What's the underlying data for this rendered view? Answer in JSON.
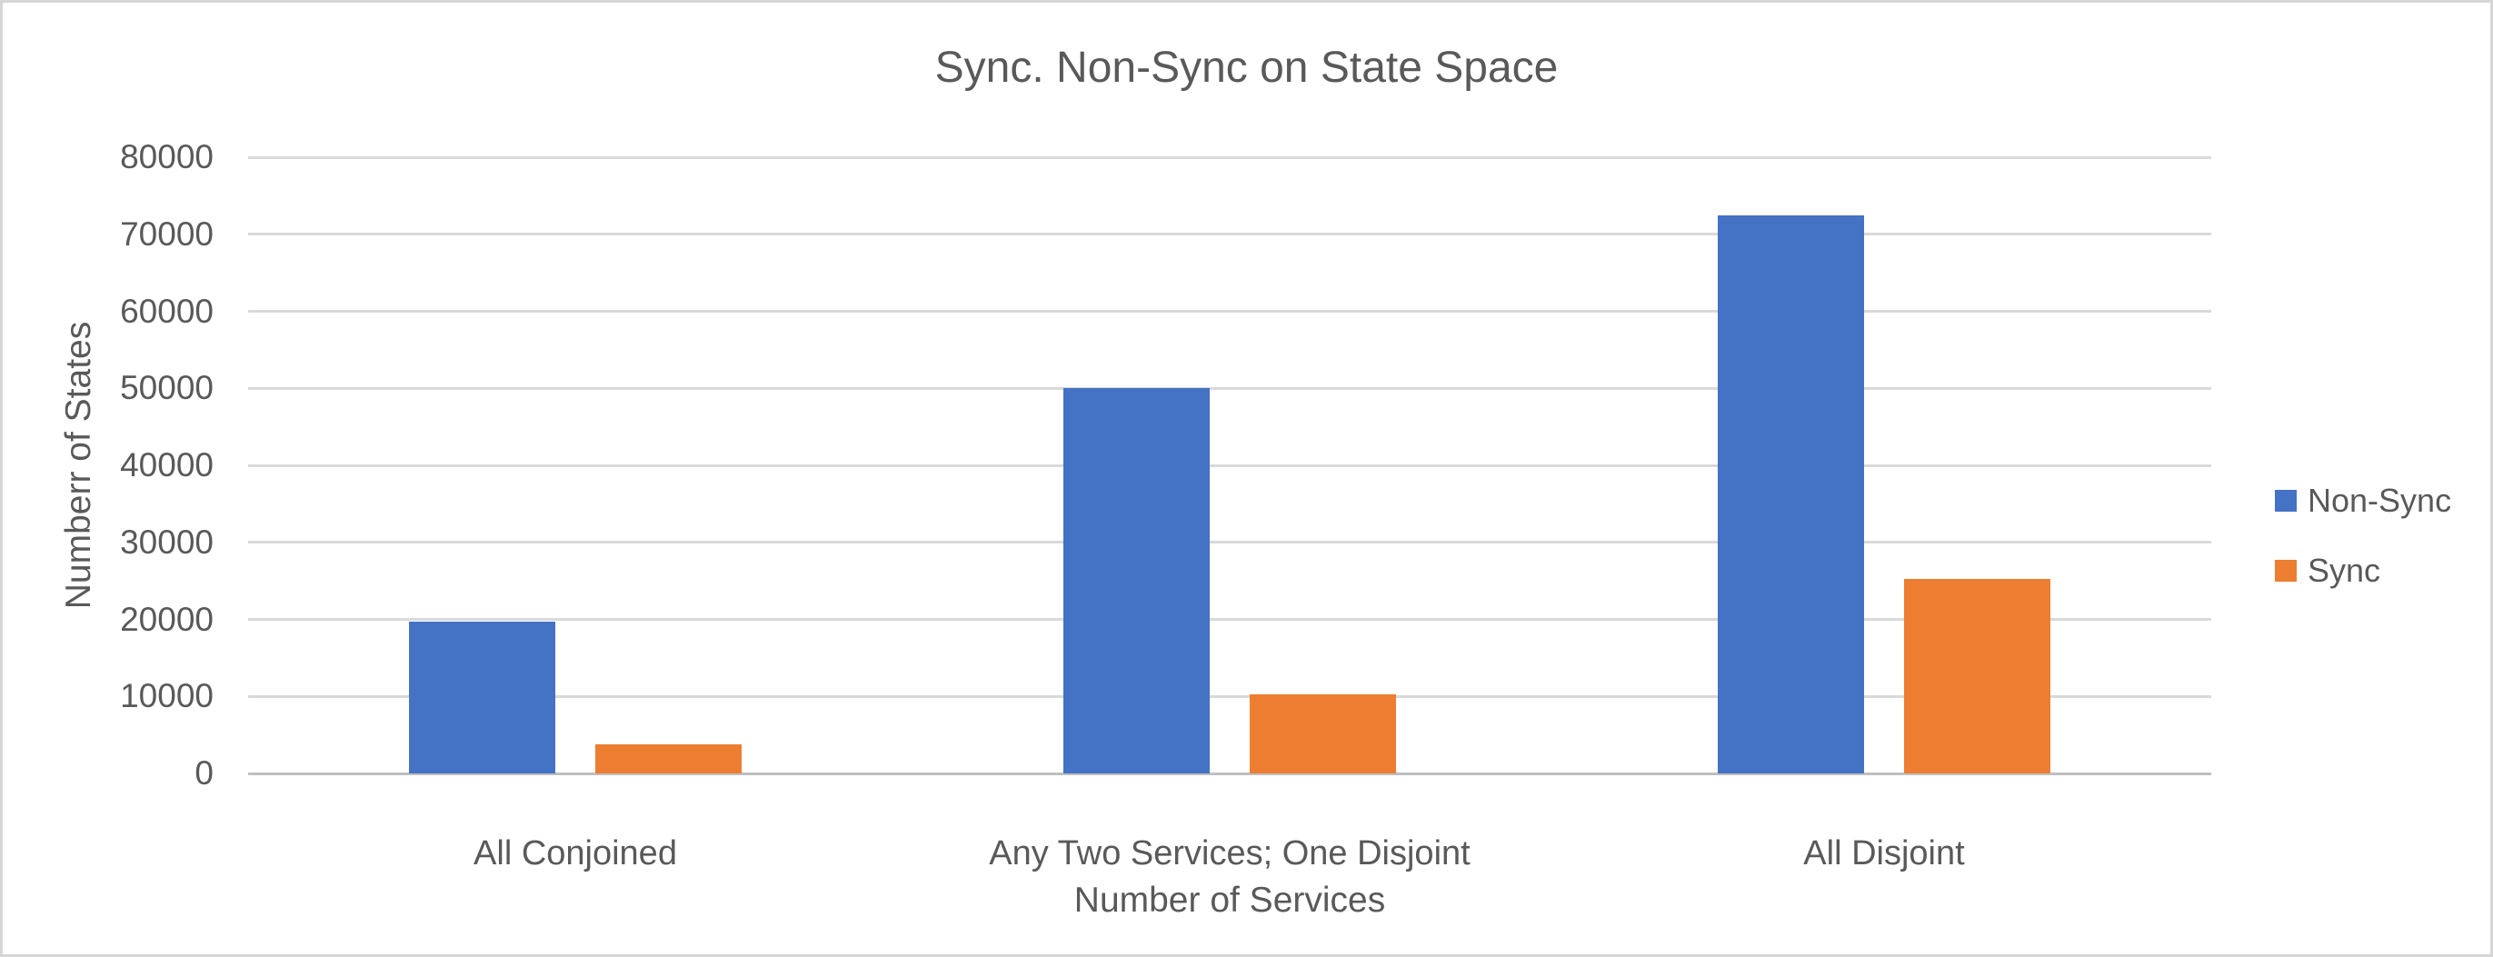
{
  "chart_data": {
    "type": "bar",
    "title": "Sync. Non-Sync on State Space",
    "xlabel": "Number of Services",
    "ylabel": "Numberr of States",
    "categories": [
      "All Conjoined",
      "Any Two Services; One Disjoint",
      "All Disjoint"
    ],
    "series": [
      {
        "name": "Non-Sync",
        "color": "#4472C4",
        "values": [
          19700,
          50000,
          72500
        ]
      },
      {
        "name": "Sync",
        "color": "#ED7D31",
        "values": [
          3800,
          10300,
          25200
        ]
      }
    ],
    "ylim": [
      0,
      80000
    ],
    "yticks": [
      0,
      10000,
      20000,
      30000,
      40000,
      50000,
      60000,
      70000,
      80000
    ],
    "grid": "horizontal",
    "legend_position": "right"
  },
  "colors": {
    "background": "#FFFFFF",
    "border": "#D6D6D6",
    "gridline": "#D9D9D9",
    "axis_line": "#BFBFBF",
    "text": "#595959",
    "non_sync": "#4472C4",
    "sync": "#ED7D31"
  }
}
